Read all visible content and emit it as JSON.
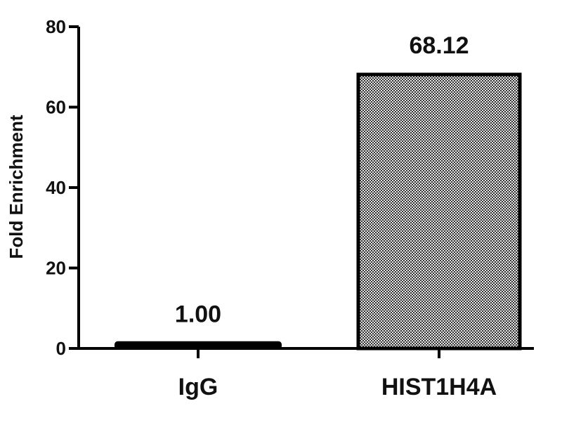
{
  "chart_data": {
    "type": "bar",
    "title": "",
    "xlabel": "",
    "ylabel": "Fold Enrichment",
    "categories": [
      "IgG",
      "HIST1H4A"
    ],
    "values": [
      1.0,
      68.12
    ],
    "data_labels": [
      "1.00",
      "68.12"
    ],
    "ylim": [
      0,
      80
    ],
    "yticks": [
      0,
      20,
      40,
      60,
      80
    ],
    "grid": false,
    "bar_colors": [
      "#000000",
      "#9a9a9a"
    ],
    "bar_fill": [
      "solid",
      "checkered"
    ]
  }
}
